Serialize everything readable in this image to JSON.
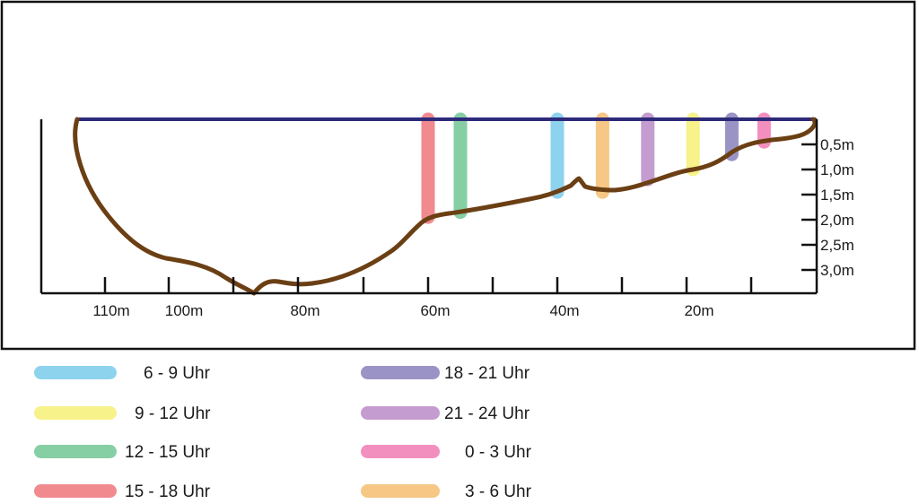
{
  "diagram": {
    "depth_labels": [
      "0,5m",
      "1,0m",
      "1,5m",
      "2,0m",
      "2,5m",
      "3,0m"
    ],
    "distance_labels": [
      "110m",
      "100m",
      "80m",
      "60m",
      "40m",
      "20m"
    ],
    "colors": {
      "water_surface": "#2e2a7a",
      "riverbed": "#6b3f14",
      "axis": "#111111",
      "frame": "#111111"
    },
    "bars": [
      {
        "time": "15 - 18 Uhr",
        "color": "#f08a8f",
        "distance_m": 60,
        "depth_m": 1.95
      },
      {
        "time": "12 - 15 Uhr",
        "color": "#86cfa4",
        "distance_m": 55,
        "depth_m": 1.85
      },
      {
        "time": "6 - 9 Uhr",
        "color": "#8ed3ee",
        "distance_m": 40,
        "depth_m": 1.45
      },
      {
        "time": "3 - 6 Uhr",
        "color": "#f6c785",
        "distance_m": 33,
        "depth_m": 1.45
      },
      {
        "time": "21 - 24 Uhr",
        "color": "#c49ccf",
        "distance_m": 26,
        "depth_m": 1.2
      },
      {
        "time": "9 - 12 Uhr",
        "color": "#f7f28a",
        "distance_m": 19,
        "depth_m": 1.0
      },
      {
        "time": "18 - 21 Uhr",
        "color": "#9a94c6",
        "distance_m": 13,
        "depth_m": 0.7
      },
      {
        "time": "0 - 3 Uhr",
        "color": "#f38fbe",
        "distance_m": 8,
        "depth_m": 0.45
      }
    ]
  },
  "legend": {
    "items": [
      {
        "label": "6 - 9 Uhr",
        "color": "#8ed3ee"
      },
      {
        "label": "9 - 12 Uhr",
        "color": "#f7f28a"
      },
      {
        "label": "12 - 15 Uhr",
        "color": "#86cfa4"
      },
      {
        "label": "15 - 18 Uhr",
        "color": "#f08a8f"
      },
      {
        "label": "18 - 21 Uhr",
        "color": "#9a94c6"
      },
      {
        "label": "21 - 24 Uhr",
        "color": "#c49ccf"
      },
      {
        "label": "0 - 3 Uhr",
        "color": "#f38fbe"
      },
      {
        "label": "3 - 6 Uhr",
        "color": "#f6c785"
      }
    ]
  }
}
